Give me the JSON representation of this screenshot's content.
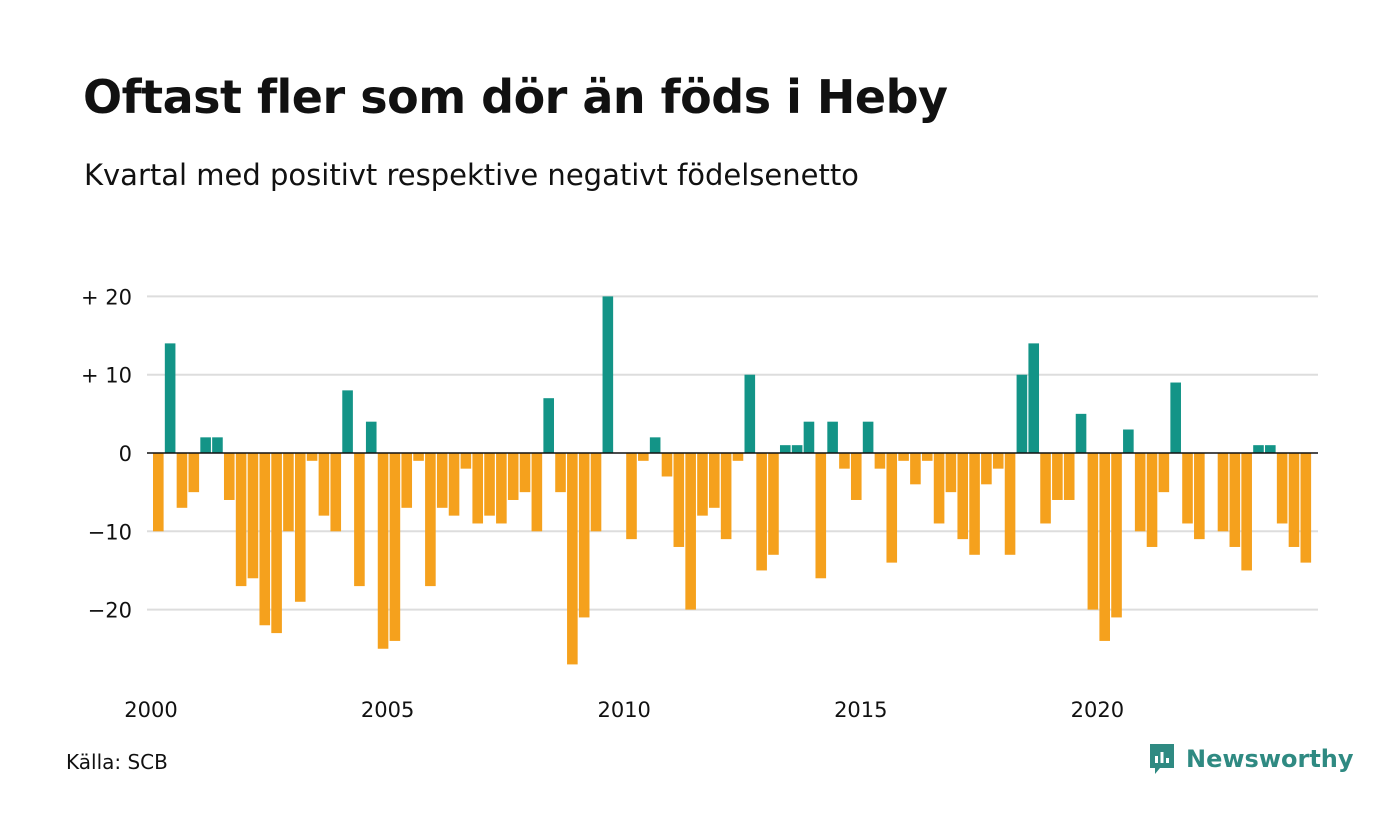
{
  "header": {
    "title": "Oftast fler som dör än föds i Heby",
    "subtitle": "Kvartal med positivt respektive negativt födelsenetto"
  },
  "footer": {
    "source": "Källa: SCB",
    "brand": "Newsworthy",
    "brand_icon": "newsworthy-logo-icon"
  },
  "colors": {
    "positive": "#139487",
    "negative": "#f5a11d",
    "grid": "#dddddd",
    "brand": "#2f8a82"
  },
  "chart_data": {
    "type": "bar",
    "title": "Oftast fler som dör än föds i Heby",
    "subtitle": "Kvartal med positivt respektive negativt födelsenetto",
    "xlabel": "",
    "ylabel": "",
    "ylim": [
      -28,
      22
    ],
    "y_ticks": [
      20,
      10,
      0,
      -10,
      -20
    ],
    "y_tick_labels": [
      "+ 20",
      "+ 10",
      "0",
      "−10",
      "−20"
    ],
    "x_ticks": [
      2000,
      2005,
      2010,
      2015,
      2020
    ],
    "x_tick_labels": [
      "2000",
      "2005",
      "2010",
      "2015",
      "2020"
    ],
    "start_year": 2000,
    "grid": true,
    "values": [
      -10,
      14,
      -7,
      -5,
      2,
      2,
      -6,
      -17,
      -16,
      -22,
      -23,
      -10,
      -19,
      -1,
      -8,
      -10,
      8,
      -17,
      4,
      -25,
      -24,
      -7,
      -1,
      -17,
      -7,
      -8,
      -2,
      -9,
      -8,
      -9,
      -6,
      -5,
      -10,
      7,
      -5,
      -27,
      -21,
      -10,
      20,
      0,
      -11,
      -1,
      2,
      -3,
      -12,
      -20,
      -8,
      -7,
      -11,
      -1,
      10,
      -15,
      -13,
      1,
      1,
      4,
      -16,
      4,
      -2,
      -6,
      4,
      -2,
      -14,
      -1,
      -4,
      -1,
      -9,
      -5,
      -11,
      -13,
      -4,
      -2,
      -13,
      10,
      14,
      -9,
      -6,
      -6,
      5,
      -20,
      -24,
      -21,
      3,
      -10,
      -12,
      -5,
      9,
      -9,
      -11,
      0,
      -10,
      -12,
      -15,
      1,
      1,
      -9,
      -12,
      -14
    ]
  }
}
